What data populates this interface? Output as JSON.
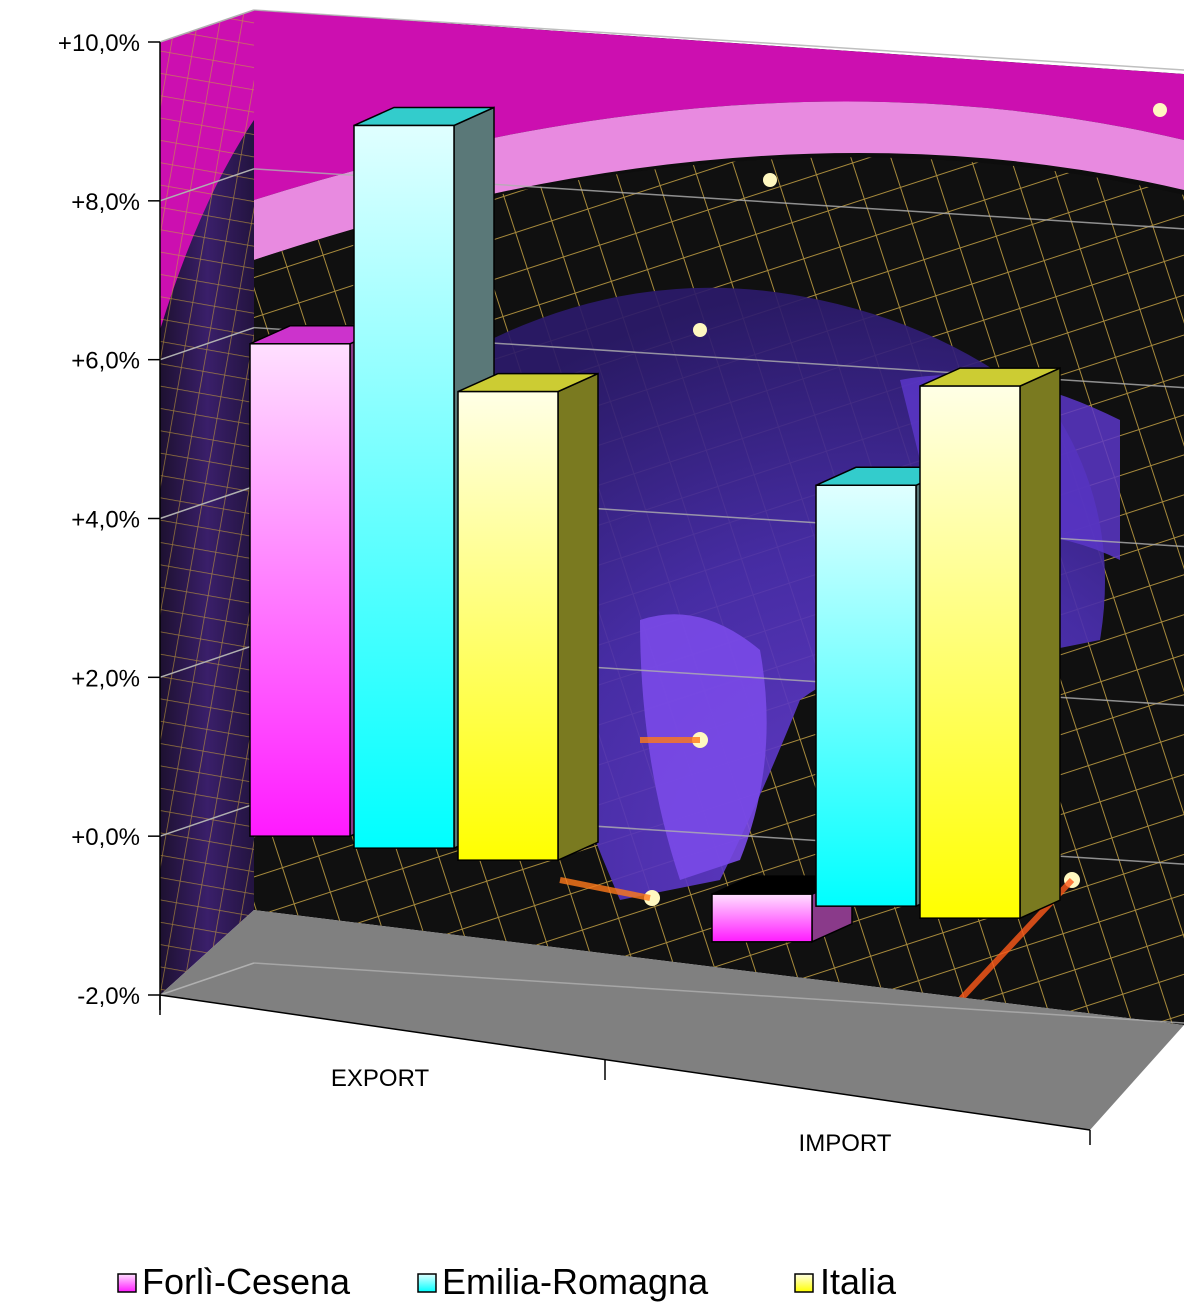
{
  "chart_data": {
    "type": "bar",
    "three_d": true,
    "categories": [
      "EXPORT",
      "IMPORT"
    ],
    "series": [
      {
        "name": "Forlì-Cesena",
        "values": [
          6.2,
          -0.6
        ],
        "color": "#ff66ff"
      },
      {
        "name": "Emilia-Romagna",
        "values": [
          9.1,
          5.3
        ],
        "color": "#33ffff"
      },
      {
        "name": "Italia",
        "values": [
          5.9,
          6.7
        ],
        "color": "#ffff33"
      }
    ],
    "y_ticks": [
      "-2,0%",
      "+0,0%",
      "+2,0%",
      "+4,0%",
      "+6,0%",
      "+8,0%",
      "+10,0%"
    ],
    "ylim": [
      -2,
      10
    ],
    "grid": true,
    "legend_position": "bottom",
    "background": "world-globe-image"
  }
}
